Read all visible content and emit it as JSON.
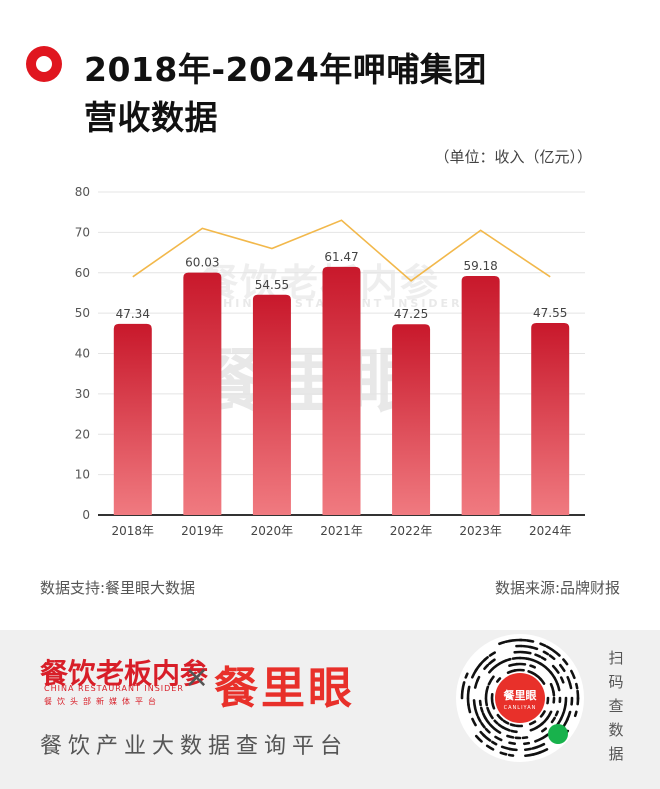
{
  "title": {
    "line1": "2018年-2024年呷哺集团",
    "line2": "营收数据"
  },
  "unit": "（单位：收入（亿元））",
  "watermark": {
    "cn": "餐饮老板内参",
    "en": "CHINA RESTAURANT INSIDER",
    "big": "餐里眼"
  },
  "chart_data": {
    "type": "bar",
    "categories": [
      "2018年",
      "2019年",
      "2020年",
      "2021年",
      "2022年",
      "2023年",
      "2024年"
    ],
    "series": [
      {
        "values": [
          47.34,
          60.03,
          54.55,
          61.47,
          47.25,
          59.18,
          47.55
        ]
      }
    ],
    "data_labels": [
      "47.34",
      "60.03",
      "54.55",
      "61.47",
      "47.25",
      "59.18",
      "47.55"
    ],
    "trend_line": {
      "values": [
        59,
        71,
        66,
        73,
        58,
        70.5,
        59
      ]
    },
    "ylim": [
      0,
      80
    ],
    "yticks": [
      0,
      10,
      20,
      30,
      40,
      50,
      60,
      70,
      80
    ],
    "grid": true,
    "colors": {
      "bar_top": "#c8182b",
      "bar_bottom": "#f07a80",
      "trend": "#f2b84b",
      "grid": "#e4e4e4",
      "axis": "#333333"
    }
  },
  "source": {
    "left": "数据支持:餐里眼大数据",
    "right": "数据来源:品牌财报"
  },
  "footer": {
    "brand_cn": "餐饮老板内参",
    "brand_en": "CHINA RESTAURANT INSIDER",
    "brand_sub": "餐饮头部新媒体平台",
    "cross": "×",
    "brand2": "餐里眼",
    "tagline": "餐饮产业大数据查询平台",
    "qr_name": "餐里眼",
    "qr_en": "CANLIYAN",
    "scan_text": "扫码查数据",
    "colors": {
      "brand_red": "#d81e28",
      "qr_badge": "#18b24c"
    }
  }
}
